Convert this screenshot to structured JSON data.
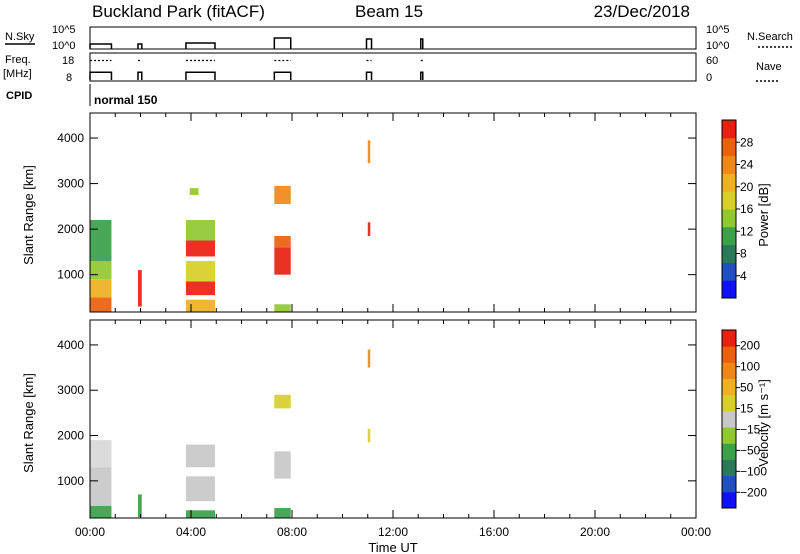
{
  "header": {
    "title": "Buckland Park (fitACF)",
    "beam": "Beam 15",
    "date": "23/Dec/2018"
  },
  "strips": {
    "nsky_label": "N.Sky",
    "nsky_ticks": [
      "10^5",
      "10^0"
    ],
    "nsearch_label": "N.Search",
    "nsearch_ticks": [
      "10^5",
      "10^0"
    ],
    "freq_label_1": "Freq.",
    "freq_label_2": "[MHz]",
    "freq_ticks": [
      "18",
      "8"
    ],
    "nave_label": "Nave",
    "nave_ticks": [
      "60",
      "0"
    ],
    "cpid_label": "CPID",
    "cpid_value": "normal 150",
    "active_blocks": [
      {
        "start_h": 0.0,
        "end_h": 0.85,
        "nsky": 0.25,
        "freq_solid": 0.3,
        "freq_dotted": 0.75
      },
      {
        "start_h": 1.9,
        "end_h": 2.05,
        "nsky": 0.25,
        "freq_solid": 0.3,
        "freq_dotted": 0.75
      },
      {
        "start_h": 3.8,
        "end_h": 4.95,
        "nsky": 0.3,
        "freq_solid": 0.3,
        "freq_dotted": 0.75
      },
      {
        "start_h": 7.3,
        "end_h": 7.95,
        "nsky": 0.55,
        "freq_solid": 0.3,
        "freq_dotted": 0.75
      },
      {
        "start_h": 10.95,
        "end_h": 11.15,
        "nsky": 0.5,
        "freq_solid": 0.3,
        "freq_dotted": 0.75
      },
      {
        "start_h": 13.1,
        "end_h": 13.15,
        "nsky": 0.5,
        "freq_solid": 0.3,
        "freq_dotted": 0.75
      }
    ]
  },
  "chart_data": [
    {
      "type": "heatmap",
      "name": "power",
      "xlabel": "",
      "ylabel": "Slant Range [km]",
      "x_range_hours": [
        0,
        24
      ],
      "yticks": [
        1000,
        2000,
        3000,
        4000
      ],
      "ylim": [
        180,
        4550
      ],
      "colorbar": {
        "label": "Power [dB]",
        "ticks": [
          4,
          8,
          12,
          16,
          20,
          24,
          28
        ],
        "range": [
          0,
          32
        ],
        "colors": [
          "#1010ff",
          "#2050c0",
          "#2a7a5a",
          "#3aa04a",
          "#90c830",
          "#d8d028",
          "#f0b020",
          "#f08818",
          "#ec6010",
          "#e82010"
        ]
      },
      "patches": [
        {
          "t0": 0.0,
          "t1": 0.85,
          "r0": 180,
          "r1": 500,
          "color": "#ec6010"
        },
        {
          "t0": 0.0,
          "t1": 0.85,
          "r0": 500,
          "r1": 900,
          "color": "#f0b020"
        },
        {
          "t0": 0.0,
          "t1": 0.85,
          "r0": 900,
          "r1": 1300,
          "color": "#90c830"
        },
        {
          "t0": 0.0,
          "t1": 0.85,
          "r0": 1300,
          "r1": 2200,
          "color": "#3aa04a"
        },
        {
          "t0": 1.9,
          "t1": 2.05,
          "r0": 300,
          "r1": 1100,
          "color": "#e82010"
        },
        {
          "t0": 3.8,
          "t1": 4.95,
          "r0": 180,
          "r1": 450,
          "color": "#f0b020"
        },
        {
          "t0": 3.8,
          "t1": 4.95,
          "r0": 550,
          "r1": 850,
          "color": "#e82010"
        },
        {
          "t0": 3.8,
          "t1": 4.95,
          "r0": 850,
          "r1": 1300,
          "color": "#d8d028"
        },
        {
          "t0": 3.8,
          "t1": 4.95,
          "r0": 1400,
          "r1": 1750,
          "color": "#e82010"
        },
        {
          "t0": 3.8,
          "t1": 4.95,
          "r0": 1750,
          "r1": 2200,
          "color": "#90c830"
        },
        {
          "t0": 3.95,
          "t1": 4.3,
          "r0": 2750,
          "r1": 2900,
          "color": "#90c830"
        },
        {
          "t0": 7.3,
          "t1": 7.95,
          "r0": 1000,
          "r1": 1600,
          "color": "#e82010"
        },
        {
          "t0": 7.3,
          "t1": 7.95,
          "r0": 1600,
          "r1": 1850,
          "color": "#ec6010"
        },
        {
          "t0": 7.3,
          "t1": 7.95,
          "r0": 180,
          "r1": 350,
          "color": "#90c830"
        },
        {
          "t0": 7.3,
          "t1": 7.95,
          "r0": 2550,
          "r1": 2950,
          "color": "#f08818"
        },
        {
          "t0": 11.0,
          "t1": 11.1,
          "r0": 1850,
          "r1": 2150,
          "color": "#e82010"
        },
        {
          "t0": 11.0,
          "t1": 11.1,
          "r0": 3450,
          "r1": 3950,
          "color": "#f08818"
        }
      ]
    },
    {
      "type": "heatmap",
      "name": "velocity",
      "xlabel": "Time UT",
      "ylabel": "Slant Range [km]",
      "x_range_hours": [
        0,
        24
      ],
      "xticks": [
        "00:00",
        "04:00",
        "08:00",
        "12:00",
        "16:00",
        "20:00",
        "00:00"
      ],
      "yticks": [
        1000,
        2000,
        3000,
        4000
      ],
      "ylim": [
        180,
        4550
      ],
      "colorbar": {
        "label": "Velocity [m s⁻¹]",
        "ticks": [
          "200",
          "100",
          "50",
          "15",
          "−15",
          "−50",
          "−100",
          "−200"
        ],
        "colors": [
          "#1010ff",
          "#2050c0",
          "#2a7a5a",
          "#3aa04a",
          "#90c830",
          "#c8c8c8",
          "#d8d028",
          "#f0b020",
          "#f08818",
          "#ec6010",
          "#e82010"
        ]
      },
      "patches": [
        {
          "t0": 0.0,
          "t1": 0.85,
          "r0": 180,
          "r1": 450,
          "color": "#3aa04a"
        },
        {
          "t0": 0.0,
          "t1": 0.85,
          "r0": 450,
          "r1": 1300,
          "color": "#c8c8c8"
        },
        {
          "t0": 0.0,
          "t1": 0.85,
          "r0": 1300,
          "r1": 1900,
          "color": "#d8d8d8"
        },
        {
          "t0": 1.9,
          "t1": 2.05,
          "r0": 200,
          "r1": 700,
          "color": "#3aa04a"
        },
        {
          "t0": 3.8,
          "t1": 4.95,
          "r0": 180,
          "r1": 350,
          "color": "#3aa04a"
        },
        {
          "t0": 3.8,
          "t1": 4.95,
          "r0": 550,
          "r1": 1100,
          "color": "#c8c8c8"
        },
        {
          "t0": 3.8,
          "t1": 4.95,
          "r0": 1300,
          "r1": 1800,
          "color": "#c8c8c8"
        },
        {
          "t0": 7.3,
          "t1": 7.95,
          "r0": 180,
          "r1": 400,
          "color": "#3aa04a"
        },
        {
          "t0": 7.3,
          "t1": 7.95,
          "r0": 1050,
          "r1": 1650,
          "color": "#c8c8c8"
        },
        {
          "t0": 7.3,
          "t1": 7.95,
          "r0": 2600,
          "r1": 2900,
          "color": "#d8d028"
        },
        {
          "t0": 11.0,
          "t1": 11.1,
          "r0": 1850,
          "r1": 2150,
          "color": "#d8d028"
        },
        {
          "t0": 11.0,
          "t1": 11.1,
          "r0": 3500,
          "r1": 3900,
          "color": "#f08818"
        }
      ]
    }
  ]
}
